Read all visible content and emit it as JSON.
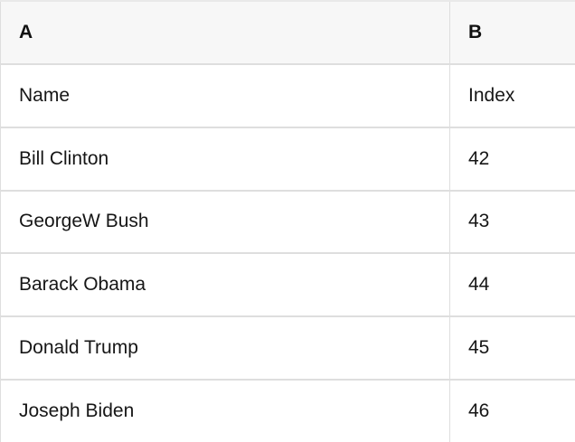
{
  "table": {
    "column_headers": [
      "A",
      "B"
    ],
    "rows": [
      {
        "a": "Name",
        "b": "Index"
      },
      {
        "a": "Bill Clinton",
        "b": "42"
      },
      {
        "a": "GeorgeW Bush",
        "b": "43"
      },
      {
        "a": "Barack Obama",
        "b": "44"
      },
      {
        "a": "Donald Trump",
        "b": "45"
      },
      {
        "a": "Joseph Biden",
        "b": "46"
      }
    ]
  },
  "colors": {
    "header_bg": "#f7f7f7",
    "row_bg": "#ffffff",
    "border": "#dedede",
    "text": "#161616"
  }
}
